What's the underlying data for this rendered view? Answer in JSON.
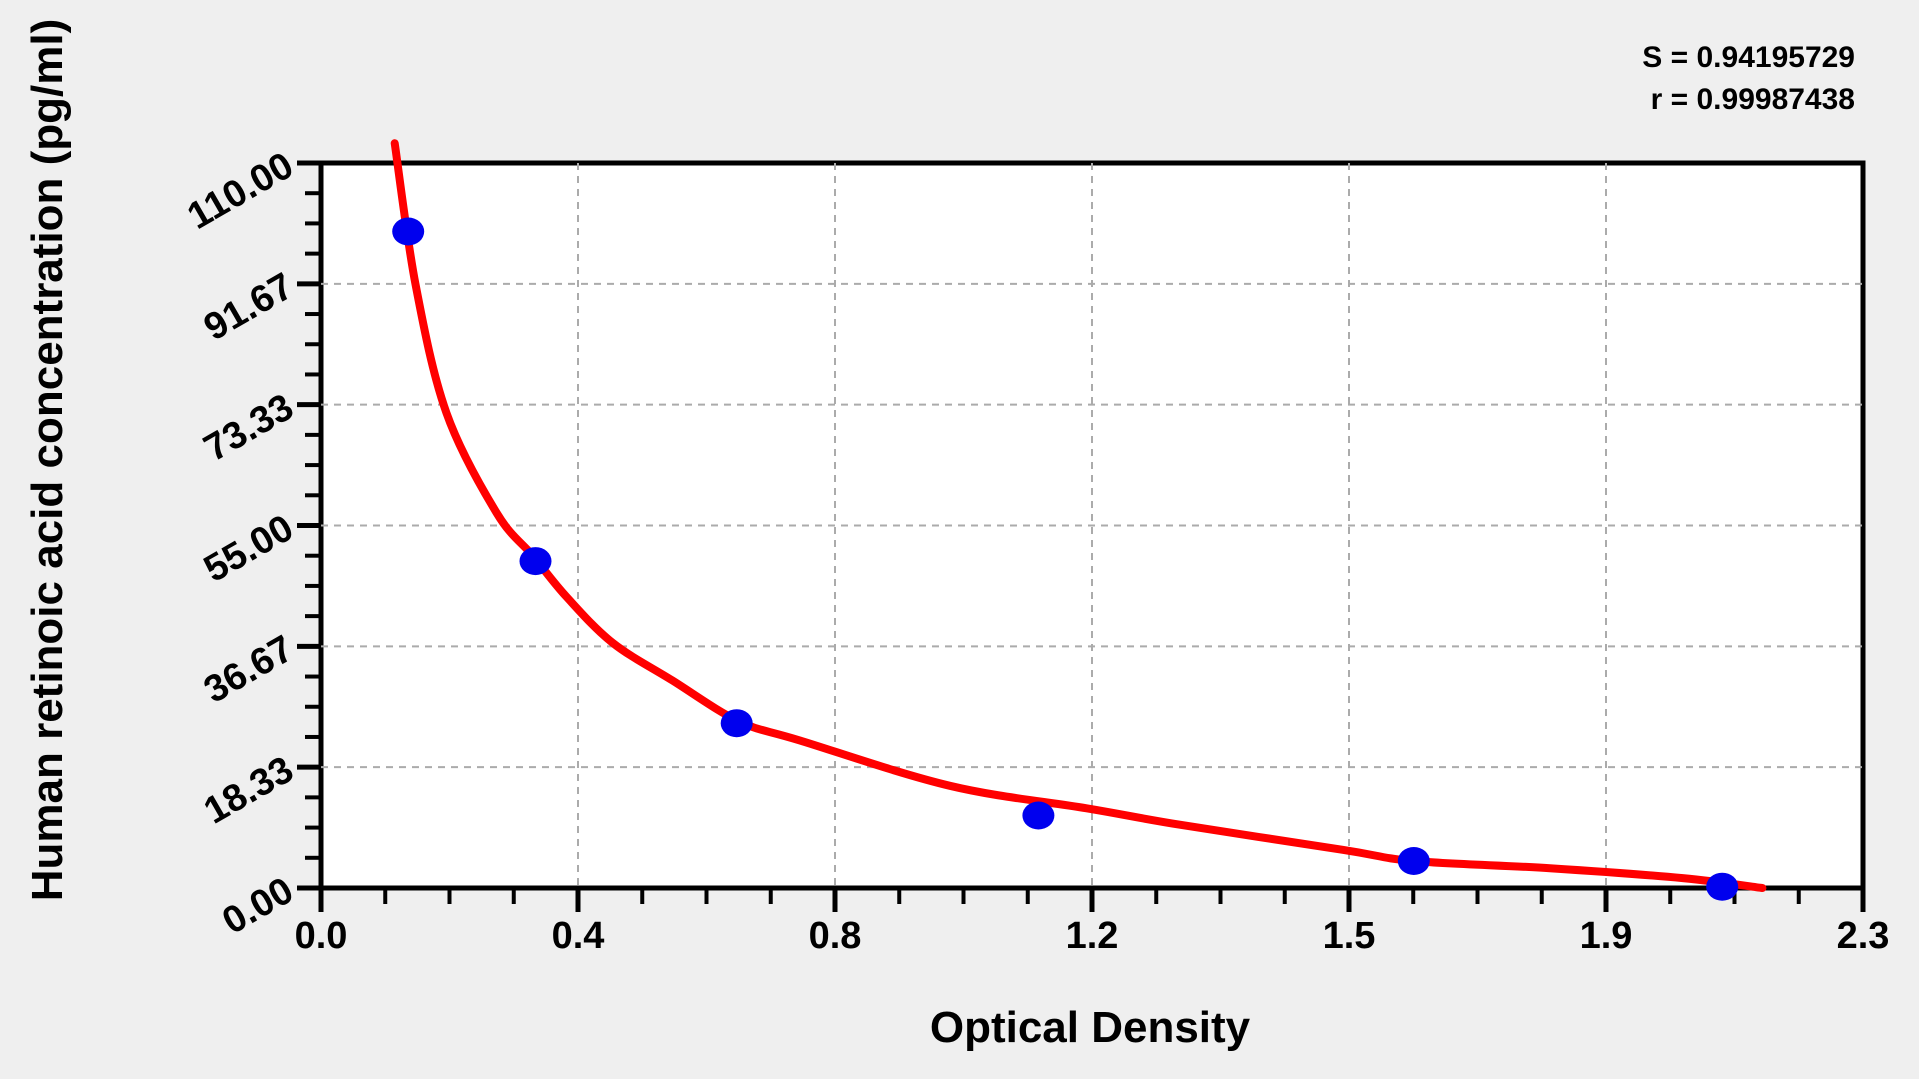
{
  "page": {
    "background_color": "#efefef"
  },
  "stats": {
    "s_line": "S = 0.94195729",
    "r_line": "r = 0.99987438"
  },
  "axes": {
    "x_title": "Optical Density",
    "y_title": "Human retinoic acid concentration (pg/ml)"
  },
  "chart_data": {
    "type": "scatter",
    "title": "",
    "xlabel": "Optical Density",
    "ylabel": "Human retinoic acid concentration (pg/ml)",
    "xlim": [
      0,
      2.3
    ],
    "ylim": [
      0,
      110
    ],
    "x_major_tick_labels": [
      "0.0",
      "0.4",
      "0.8",
      "1.2",
      "1.5",
      "1.9",
      "2.3"
    ],
    "y_major_tick_labels": [
      "0.00",
      "18.33",
      "36.67",
      "55.00",
      "73.33",
      "91.67",
      "110.00"
    ],
    "major_intervals": 6,
    "minor_divisions_per_major": 4,
    "grid": {
      "show": true,
      "style": "dashed",
      "color": "#ababab"
    },
    "legend": "none",
    "annotations": [
      "S = 0.94195729",
      "r = 0.99987438"
    ],
    "colors": {
      "fit_curve": "#ff0000",
      "points": "#0000ee",
      "axis": "#000000",
      "plot_background": "#ffffff",
      "page_background": "#efefef"
    },
    "series": [
      {
        "name": "standard-points",
        "type": "scatter",
        "color": "#0000ee",
        "points": [
          {
            "od": 0.13,
            "conc": 99.6
          },
          {
            "od": 0.32,
            "conc": 49.6
          },
          {
            "od": 0.62,
            "conc": 25.0
          },
          {
            "od": 1.07,
            "conc": 11.0
          },
          {
            "od": 1.63,
            "conc": 4.1
          },
          {
            "od": 2.09,
            "conc": 0.2
          }
        ]
      },
      {
        "name": "fit-curve",
        "type": "line",
        "color": "#ff0000",
        "points": [
          {
            "od": 0.11,
            "conc": 113.0
          },
          {
            "od": 0.141,
            "conc": 91.6
          },
          {
            "od": 0.187,
            "conc": 72.1
          },
          {
            "od": 0.262,
            "conc": 56.9
          },
          {
            "od": 0.316,
            "conc": 50.4
          },
          {
            "od": 0.366,
            "conc": 44.2
          },
          {
            "od": 0.435,
            "conc": 37.2
          },
          {
            "od": 0.524,
            "conc": 31.5
          },
          {
            "od": 0.623,
            "conc": 25.3
          },
          {
            "od": 0.714,
            "conc": 22.4
          },
          {
            "od": 0.938,
            "conc": 15.5
          },
          {
            "od": 1.142,
            "conc": 12.1
          },
          {
            "od": 1.281,
            "conc": 9.6
          },
          {
            "od": 1.524,
            "conc": 5.8
          },
          {
            "od": 1.63,
            "conc": 4.1
          },
          {
            "od": 1.833,
            "conc": 3.0
          },
          {
            "od": 2.031,
            "conc": 1.5
          },
          {
            "od": 2.15,
            "conc": 0.0
          }
        ]
      }
    ]
  }
}
